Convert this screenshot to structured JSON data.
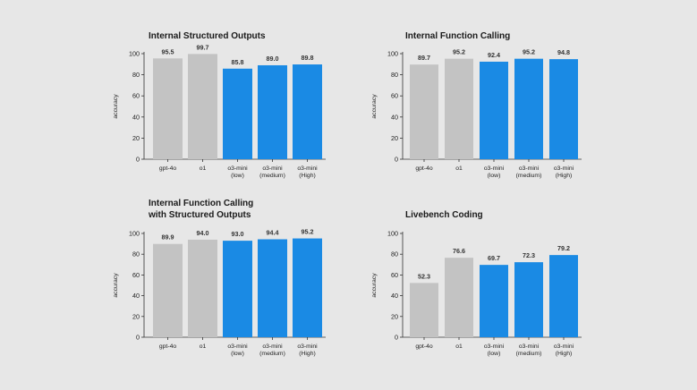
{
  "colors": {
    "background": "#e7e7e7",
    "baseline_bar": "#c3c3c3",
    "o3_bar": "#1a8ae4"
  },
  "chart_data": [
    {
      "type": "bar",
      "title": [
        "Internal Structured Outputs"
      ],
      "ylabel": "accuracy",
      "ylim": [
        0,
        100
      ],
      "yticks": [
        0,
        20,
        40,
        60,
        80,
        100
      ],
      "grid": false,
      "categories": [
        [
          "gpt-4o"
        ],
        [
          "o1"
        ],
        [
          "o3-mini",
          "(low)"
        ],
        [
          "o3-mini",
          "(medium)"
        ],
        [
          "o3-mini",
          "(High)"
        ]
      ],
      "values": [
        95.5,
        99.7,
        85.8,
        89.0,
        89.8
      ],
      "value_labels": [
        "95.5",
        "99.7",
        "85.8",
        "89.0",
        "89.8"
      ],
      "bar_colors": [
        "baseline_bar",
        "baseline_bar",
        "o3_bar",
        "o3_bar",
        "o3_bar"
      ]
    },
    {
      "type": "bar",
      "title": [
        "Internal Function Calling"
      ],
      "ylabel": "accuracy",
      "ylim": [
        0,
        100
      ],
      "yticks": [
        0,
        20,
        40,
        60,
        80,
        100
      ],
      "grid": false,
      "categories": [
        [
          "gpt-4o"
        ],
        [
          "o1"
        ],
        [
          "o3-mini",
          "(low)"
        ],
        [
          "o3-mini",
          "(medium)"
        ],
        [
          "o3-mini",
          "(High)"
        ]
      ],
      "values": [
        89.7,
        95.2,
        92.4,
        95.2,
        94.8
      ],
      "value_labels": [
        "89.7",
        "95.2",
        "92.4",
        "95.2",
        "94.8"
      ],
      "bar_colors": [
        "baseline_bar",
        "baseline_bar",
        "o3_bar",
        "o3_bar",
        "o3_bar"
      ]
    },
    {
      "type": "bar",
      "title": [
        "Internal Function Calling",
        "with Structured Outputs"
      ],
      "ylabel": "accuracy",
      "ylim": [
        0,
        100
      ],
      "yticks": [
        0,
        20,
        40,
        60,
        80,
        100
      ],
      "grid": false,
      "categories": [
        [
          "gpt-4o"
        ],
        [
          "o1"
        ],
        [
          "o3-mini",
          "(low)"
        ],
        [
          "o3-mini",
          "(medium)"
        ],
        [
          "o3-mini",
          "(High)"
        ]
      ],
      "values": [
        89.9,
        94.0,
        93.0,
        94.4,
        95.2
      ],
      "value_labels": [
        "89.9",
        "94.0",
        "93.0",
        "94.4",
        "95.2"
      ],
      "bar_colors": [
        "baseline_bar",
        "baseline_bar",
        "o3_bar",
        "o3_bar",
        "o3_bar"
      ]
    },
    {
      "type": "bar",
      "title": [
        "Livebench Coding"
      ],
      "ylabel": "accuracy",
      "ylim": [
        0,
        100
      ],
      "yticks": [
        0,
        20,
        40,
        60,
        80,
        100
      ],
      "grid": false,
      "categories": [
        [
          "gpt-4o"
        ],
        [
          "o1"
        ],
        [
          "o3-mini",
          "(low)"
        ],
        [
          "o3-mini",
          "(medium)"
        ],
        [
          "o3-mini",
          "(High)"
        ]
      ],
      "values": [
        52.3,
        76.6,
        69.7,
        72.3,
        79.2
      ],
      "value_labels": [
        "52.3",
        "76.6",
        "69.7",
        "72.3",
        "79.2"
      ],
      "bar_colors": [
        "baseline_bar",
        "baseline_bar",
        "o3_bar",
        "o3_bar",
        "o3_bar"
      ]
    }
  ]
}
